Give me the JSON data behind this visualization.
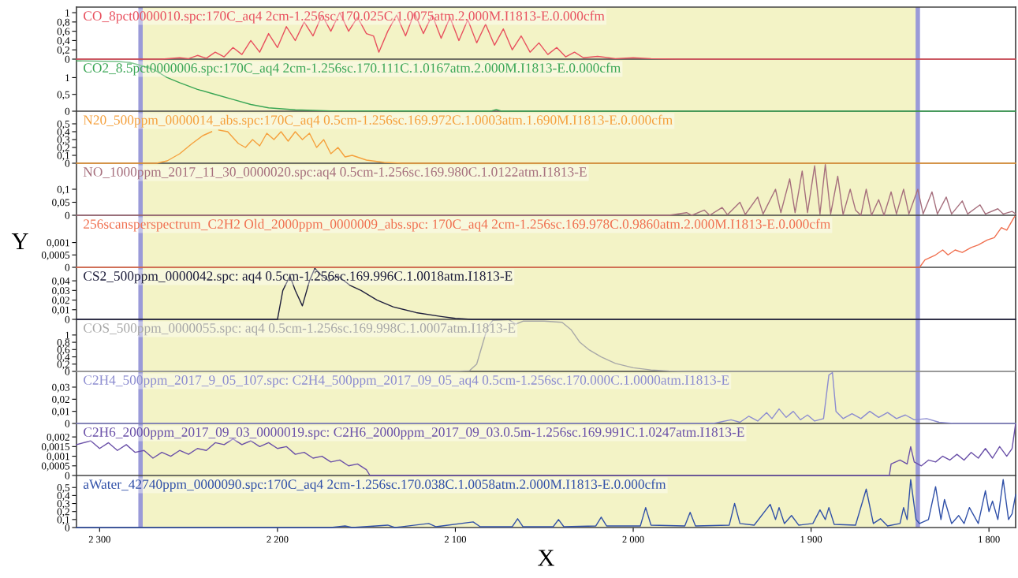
{
  "chart_data": [
    {
      "type": "line",
      "title": "CO_8pct0000010.spc:170C_aq4 2cm-1.256sc.170.025C.1.0075atm.2.000M.I1813-E.0.000cfm",
      "tick_labels": "y",
      "xlim": [
        2313,
        1785
      ],
      "ylim": [
        0,
        1.12
      ],
      "yticks": [
        0,
        {
          "value": 0.2,
          "label": "0,2"
        },
        {
          "value": 0.4,
          "label": "0,4"
        },
        {
          "value": 0.6,
          "label": "0,6"
        },
        {
          "value": 0.8,
          "label": "0,8"
        },
        1
      ],
      "x": [
        2313,
        2265,
        2255,
        2250,
        2245,
        2240,
        2235,
        2230,
        2225,
        2220,
        2215,
        2210,
        2205,
        2200,
        2195,
        2190,
        2185,
        2180,
        2175,
        2170,
        2165,
        2160,
        2155,
        2150,
        2146,
        2143,
        2138,
        2133,
        2128,
        2123,
        2118,
        2113,
        2108,
        2103,
        2098,
        2093,
        2088,
        2083,
        2078,
        2073,
        2068,
        2063,
        2058,
        2053,
        2048,
        2043,
        2038,
        2033,
        2028,
        2020,
        2010,
        2000,
        1990,
        1975,
        1785
      ],
      "series": [
        {
          "color": "#e8505e",
          "values": [
            0,
            0,
            0.03,
            0.01,
            0.08,
            0.02,
            0.15,
            0.05,
            0.25,
            0.1,
            0.4,
            0.15,
            0.55,
            0.25,
            0.7,
            0.4,
            0.8,
            0.5,
            0.95,
            0.6,
            1.0,
            0.6,
            0.9,
            0.55,
            0.5,
            0.15,
            0.6,
            0.95,
            0.5,
            1.0,
            0.55,
            0.95,
            0.45,
            0.9,
            0.4,
            0.85,
            0.35,
            0.75,
            0.3,
            0.65,
            0.2,
            0.5,
            0.15,
            0.35,
            0.1,
            0.25,
            0.05,
            0.15,
            0.03,
            0.06,
            0.01,
            0.03,
            0.01,
            0,
            0
          ]
        }
      ],
      "bands": [
        {
          "axis": "x",
          "from": 2277,
          "to": 1840,
          "color": "#f3f3c6"
        }
      ],
      "ref_lines": [
        {
          "axis": "x",
          "value": 2277,
          "color": "#9a9ad8"
        },
        {
          "axis": "x",
          "value": 1840,
          "color": "#9a9ad8"
        }
      ]
    },
    {
      "type": "line",
      "title": "CO2_8.5pct0000006.spc:170C_aq4 2cm-1.256sc.170.111C.1.0167atm.2.000M.I1813-E.0.000cfm",
      "tick_labels": "y",
      "xlim": [
        2313,
        1785
      ],
      "ylim": [
        0,
        1.55
      ],
      "yticks": [
        0,
        {
          "value": 0.5,
          "label": "0,5"
        },
        1
      ],
      "x": [
        2313,
        2290,
        2283,
        2278,
        2270,
        2262,
        2255,
        2245,
        2235,
        2225,
        2215,
        2205,
        2190,
        2170,
        2100,
        2080,
        2077,
        2074,
        1785
      ],
      "series": [
        {
          "color": "#3aa655",
          "values": [
            1.5,
            1.48,
            1.45,
            1.38,
            1.25,
            1.0,
            0.85,
            0.65,
            0.5,
            0.35,
            0.2,
            0.1,
            0.04,
            0.01,
            0,
            0,
            0.05,
            0,
            0
          ]
        }
      ],
      "bands": [
        {
          "axis": "x",
          "from": 2277,
          "to": 1840,
          "color": "#f3f3c6"
        }
      ],
      "ref_lines": [
        {
          "axis": "x",
          "value": 2277,
          "color": "#9a9ad8"
        },
        {
          "axis": "x",
          "value": 1840,
          "color": "#9a9ad8"
        }
      ]
    },
    {
      "type": "line",
      "title": "N20_500ppm_0000014_abs.spc:170C_aq4 0.5cm-1.256sc.169.972C.1.0003atm.1.690M.I1813-E.0.000cfm",
      "tick_labels": "y",
      "xlim": [
        2313,
        1785
      ],
      "ylim": [
        0,
        0.66
      ],
      "yticks": [
        0,
        {
          "value": 0.1,
          "label": "0,1"
        },
        {
          "value": 0.2,
          "label": "0,2"
        },
        {
          "value": 0.3,
          "label": "0,3"
        },
        {
          "value": 0.4,
          "label": "0,4"
        },
        {
          "value": 0.5,
          "label": "0,5"
        }
      ],
      "x": [
        2313,
        2268,
        2262,
        2255,
        2248,
        2242,
        2237,
        2235,
        2233,
        2228,
        2222,
        2218,
        2214,
        2210,
        2206,
        2202,
        2198,
        2194,
        2190,
        2186,
        2182,
        2178,
        2174,
        2170,
        2166,
        2162,
        2158,
        2150,
        2140,
        2130,
        1785
      ],
      "series": [
        {
          "color": "#f5a03c",
          "values": [
            0,
            0,
            0.03,
            0.12,
            0.25,
            0.35,
            0.4,
            null,
            0.42,
            0.4,
            0.25,
            0.2,
            0.3,
            0.22,
            0.38,
            0.3,
            0.4,
            0.28,
            0.4,
            0.3,
            0.38,
            0.2,
            0.3,
            0.12,
            0.2,
            0.08,
            0.1,
            0.04,
            0.01,
            0,
            0
          ]
        }
      ],
      "bands": [
        {
          "axis": "x",
          "from": 2277,
          "to": 1840,
          "color": "#f3f3c6"
        }
      ],
      "ref_lines": [
        {
          "axis": "x",
          "value": 2277,
          "color": "#9a9ad8"
        },
        {
          "axis": "x",
          "value": 1840,
          "color": "#9a9ad8"
        }
      ]
    },
    {
      "type": "line",
      "title": "NO_1000ppm_2017_11_30_0000020.spc:aq4 0.5cm-1.256sc.169.980C.1.0122atm.I1813-E",
      "tick_labels": "y",
      "xlim": [
        2313,
        1785
      ],
      "ylim": [
        0,
        0.2
      ],
      "yticks": [
        0,
        {
          "value": 0.05,
          "label": "0,05"
        },
        {
          "value": 0.1,
          "label": "0,1"
        }
      ],
      "x": [
        2313,
        1980,
        1970,
        1967,
        1960,
        1957,
        1950,
        1947,
        1940,
        1937,
        1930,
        1927,
        1920,
        1917,
        1912,
        1909,
        1905,
        1902,
        1898,
        1895,
        1892,
        1889,
        1885,
        1882,
        1878,
        1875,
        1872,
        1869,
        1866,
        1862,
        1859,
        1855,
        1852,
        1848,
        1845,
        1840,
        1837,
        1832,
        1829,
        1824,
        1821,
        1815,
        1812,
        1805,
        1802,
        1795,
        1792,
        1787,
        1785
      ],
      "series": [
        {
          "color": "#a66f7d",
          "values": [
            0,
            0,
            0.01,
            0,
            0.02,
            0,
            0.03,
            0.002,
            0.05,
            0.003,
            0.07,
            0.005,
            0.1,
            0.01,
            0.14,
            0.01,
            0.17,
            0.01,
            0.19,
            0.005,
            0.195,
            0.005,
            0.15,
            0.002,
            0.1,
            0.02,
            0,
            0.1,
            0,
            0.06,
            0,
            0.09,
            0.005,
            0.1,
            0.005,
            0.1,
            0.005,
            0.09,
            0.005,
            0.07,
            0.005,
            0.055,
            0.005,
            0.04,
            0.005,
            0.025,
            0.005,
            0.015,
            0.005
          ]
        }
      ],
      "bands": [
        {
          "axis": "x",
          "from": 2277,
          "to": 1840,
          "color": "#f3f3c6"
        }
      ],
      "ref_lines": [
        {
          "axis": "x",
          "value": 2277,
          "color": "#9a9ad8"
        },
        {
          "axis": "x",
          "value": 1840,
          "color": "#9a9ad8"
        }
      ]
    },
    {
      "type": "line",
      "title": "256scansperspectrum_C2H2 Old_2000ppm_0000009_abs.spc: 170C_aq4 2cm-1.256sc.169.978C.0.9860atm.2.000M.I1813-E.0.000cfm",
      "ylabel": "Y",
      "tick_labels": "y",
      "xlim": [
        2313,
        1785
      ],
      "ylim": [
        0,
        0.0021
      ],
      "yticks": [
        0,
        {
          "value": 0.0005,
          "label": "0,0005"
        },
        {
          "value": 0.001,
          "label": "0,001"
        }
      ],
      "x": [
        2313,
        1839,
        1836,
        1830,
        1826,
        1823,
        1819,
        1815,
        1810,
        1806,
        1801,
        1797,
        1793,
        1790,
        1786,
        1785
      ],
      "series": [
        {
          "color": "#f07050",
          "values": [
            0,
            0,
            0.0003,
            0.0005,
            0.0007,
            0.0005,
            0.0007,
            0.0006,
            0.0008,
            0.0009,
            0.0011,
            0.0012,
            0.0016,
            0.0015,
            0.002,
            0.0021
          ]
        }
      ],
      "bands": [
        {
          "axis": "x",
          "from": 2277,
          "to": 1840,
          "color": "#f3f3c6"
        }
      ],
      "ref_lines": [
        {
          "axis": "x",
          "value": 2277,
          "color": "#9a9ad8"
        },
        {
          "axis": "x",
          "value": 1840,
          "color": "#9a9ad8"
        }
      ]
    },
    {
      "type": "line",
      "title": "CS2_500ppm_0000042.spc: aq4 0.5cm-1.256sc.169.996C.1.0018atm.I1813-E",
      "tick_labels": "y",
      "xlim": [
        2313,
        1785
      ],
      "ylim": [
        0,
        0.054
      ],
      "yticks": [
        0,
        {
          "value": 0.01,
          "label": "0,01"
        },
        {
          "value": 0.02,
          "label": "0,02"
        },
        {
          "value": 0.03,
          "label": "0,03"
        },
        {
          "value": 0.04,
          "label": "0,04"
        }
      ],
      "x": [
        2313,
        2200,
        2197,
        2193,
        2190,
        2186,
        2182,
        2179,
        2175,
        2171,
        2166,
        2159,
        2153,
        2144,
        2135,
        2122,
        2108,
        2100,
        2091,
        1785
      ],
      "series": [
        {
          "color": "#1e1e3c",
          "values": [
            0,
            0,
            0.03,
            0.045,
            0.03,
            0.014,
            0.04,
            0.053,
            0.045,
            0.04,
            0.045,
            0.035,
            0.03,
            0.02,
            0.013,
            0.007,
            0.003,
            0.001,
            0,
            0
          ]
        }
      ],
      "bands": [
        {
          "axis": "x",
          "from": 2277,
          "to": 1840,
          "color": "#f3f3c6"
        }
      ],
      "ref_lines": [
        {
          "axis": "x",
          "value": 2277,
          "color": "#9a9ad8"
        },
        {
          "axis": "x",
          "value": 1840,
          "color": "#9a9ad8"
        }
      ]
    },
    {
      "type": "line",
      "title": "COS_500ppm_0000055.spc: aq4 0.5cm-1.256sc.169.998C.1.0007atm.I1813-E",
      "tick_labels": "y",
      "xlim": [
        2313,
        1785
      ],
      "ylim": [
        0,
        1.43
      ],
      "yticks": [
        0,
        {
          "value": 0.2,
          "label": "0,2"
        },
        {
          "value": 0.4,
          "label": "0,4"
        },
        {
          "value": 0.6,
          "label": "0,6"
        },
        {
          "value": 0.8,
          "label": "0,8"
        },
        1
      ],
      "x": [
        2313,
        2100,
        2092,
        2088,
        2085,
        2082,
        2079,
        2070,
        2066,
        2062,
        2050,
        2040,
        2035,
        2030,
        2025,
        2018,
        2010,
        2000,
        1990,
        1980,
        1970,
        1785
      ],
      "series": [
        {
          "color": "#a8a8a8",
          "values": [
            0,
            0,
            0.02,
            0.2,
            0.7,
            1.2,
            1.4,
            1.42,
            1.3,
            1.38,
            1.38,
            1.35,
            1.15,
            0.8,
            0.6,
            0.4,
            0.22,
            0.1,
            0.04,
            0.01,
            0,
            0
          ]
        }
      ],
      "bands": [
        {
          "axis": "x",
          "from": 2277,
          "to": 1840,
          "color": "#f3f3c6"
        }
      ],
      "ref_lines": [
        {
          "axis": "x",
          "value": 2277,
          "color": "#9a9ad8"
        },
        {
          "axis": "x",
          "value": 1840,
          "color": "#9a9ad8"
        }
      ]
    },
    {
      "type": "line",
      "title": "C2H4_500ppm_2017_9_05_107.spc: C2H4_500ppm_2017_09_05_aq4 0.5cm-1.256sc.170.000C.1.0000atm.I1813-E",
      "tick_labels": "y",
      "xlim": [
        2313,
        1785
      ],
      "ylim": [
        0,
        0.043
      ],
      "yticks": [
        0,
        {
          "value": 0.01,
          "label": "0,01"
        },
        {
          "value": 0.02,
          "label": "0,02"
        },
        {
          "value": 0.03,
          "label": "0,03"
        }
      ],
      "x": [
        2313,
        1955,
        1945,
        1940,
        1935,
        1930,
        1925,
        1922,
        1918,
        1914,
        1910,
        1906,
        1902,
        1898,
        1893,
        1890,
        1888,
        1886,
        1882,
        1877,
        1872,
        1867,
        1862,
        1857,
        1852,
        1847,
        1842,
        1835,
        1828,
        1820,
        1785
      ],
      "series": [
        {
          "color": "#8c8cd0",
          "values": [
            0,
            0,
            0.003,
            0.001,
            0.006,
            0.002,
            0.009,
            0.004,
            0.012,
            0.005,
            0.01,
            0.003,
            0.007,
            0.002,
            0.004,
            0.04,
            0.042,
            0.01,
            0.004,
            0.008,
            0.004,
            0.01,
            0.005,
            0.009,
            0.004,
            0.007,
            0.003,
            0.004,
            0.001,
            0,
            0
          ]
        }
      ],
      "bands": [
        {
          "axis": "x",
          "from": 2277,
          "to": 1840,
          "color": "#f3f3c6"
        }
      ],
      "ref_lines": [
        {
          "axis": "x",
          "value": 2277,
          "color": "#9a9ad8"
        },
        {
          "axis": "x",
          "value": 1840,
          "color": "#9a9ad8"
        }
      ]
    },
    {
      "type": "line",
      "title": "C2H6_2000ppm_2017_09_03_0000019.spc: C2H6_2000ppm_2017_09_03.0.5m-1.256sc.169.991C.1.0247atm.I1813-E",
      "tick_labels": "y",
      "xlim": [
        2313,
        1785
      ],
      "ylim": [
        0,
        0.0027
      ],
      "yticks": [
        0,
        {
          "value": 0.0005,
          "label": "0,0005"
        },
        {
          "value": 0.001,
          "label": "0,001"
        },
        {
          "value": 0.0015,
          "label": "0,0015"
        },
        {
          "value": 0.002,
          "label": "0,002"
        }
      ],
      "x": [
        2313,
        2305,
        2300,
        2295,
        2290,
        2285,
        2280,
        2275,
        2270,
        2265,
        2260,
        2255,
        2250,
        2245,
        2240,
        2235,
        2230,
        2225,
        2220,
        2215,
        2210,
        2205,
        2200,
        2195,
        2190,
        2185,
        2180,
        2175,
        2170,
        2165,
        2160,
        2155,
        2150,
        2148,
        1856,
        1855,
        1850,
        1846,
        1844,
        1842,
        1838,
        1834,
        1830,
        1826,
        1822,
        1818,
        1814,
        1810,
        1806,
        1802,
        1798,
        1794,
        1790,
        1787,
        1785
      ],
      "series": [
        {
          "color": "#6a50a8",
          "values": [
            0.0016,
            0.0018,
            0.0014,
            0.0017,
            0.0013,
            0.0016,
            0.0012,
            0.0013,
            0.0009,
            0.0012,
            0.001,
            0.0013,
            0.0011,
            0.0014,
            0.0013,
            0.0017,
            0.0016,
            0.0019,
            0.0016,
            0.0018,
            0.0015,
            0.0017,
            0.0014,
            0.0015,
            0.0011,
            0.0012,
            0.0009,
            0.001,
            0.0007,
            0.0008,
            0.0005,
            0.0006,
            0.0003,
            0,
            0,
            0.0006,
            0.0008,
            0.0006,
            0.0015,
            0.0007,
            0.0005,
            0.0008,
            0.0007,
            0.001,
            0.0008,
            0.0011,
            0.0008,
            0.0012,
            0.0009,
            0.0014,
            0.0009,
            0.0015,
            0.001,
            0.0014,
            0.0027
          ]
        }
      ],
      "bands": [
        {
          "axis": "x",
          "from": 2277,
          "to": 1840,
          "color": "#f3f3c6"
        }
      ],
      "ref_lines": [
        {
          "axis": "x",
          "value": 2277,
          "color": "#9a9ad8"
        },
        {
          "axis": "x",
          "value": 1840,
          "color": "#9a9ad8"
        }
      ]
    },
    {
      "type": "line",
      "title": "aWater_42740ppm_0000090.spc:170C_aq4 2cm-1.256sc.170.038C.1.0058atm.2.000M.I1813-E.0.000cfm",
      "xlabel": "X",
      "xlim": [
        2313,
        1785
      ],
      "xticks": [
        {
          "value": 2300,
          "label": "2 300"
        },
        {
          "value": 2200,
          "label": "2 200"
        },
        {
          "value": 2100,
          "label": "2 100"
        },
        {
          "value": 2000,
          "label": "2 000"
        },
        {
          "value": 1900,
          "label": "1 900"
        },
        {
          "value": 1800,
          "label": "1 800"
        }
      ],
      "ylim": [
        0,
        0.65
      ],
      "yticks": [
        0,
        {
          "value": 0.1,
          "label": "0,1"
        },
        {
          "value": 0.2,
          "label": "0,2"
        },
        {
          "value": 0.3,
          "label": "0,3"
        },
        {
          "value": 0.4,
          "label": "0,4"
        },
        {
          "value": 0.5,
          "label": "0,5"
        }
      ],
      "x": [
        2313,
        2170,
        2162,
        2158,
        2138,
        2134,
        2115,
        2111,
        2090,
        2086,
        2068,
        2065,
        2062,
        2045,
        2042,
        2039,
        2021,
        2018,
        2015,
        1996,
        1993,
        1990,
        1971,
        1968,
        1965,
        1946,
        1943,
        1940,
        1932,
        1923,
        1920,
        1918,
        1915,
        1911,
        1907,
        1899,
        1895,
        1892,
        1890,
        1887,
        1875,
        1869,
        1865,
        1861,
        1857,
        1850,
        1848,
        1846,
        1844,
        1841,
        1839,
        1834,
        1830,
        1827,
        1825,
        1821,
        1817,
        1814,
        1811,
        1806,
        1802,
        1800,
        1798,
        1795,
        1792,
        1789,
        1787,
        1785
      ],
      "series": [
        {
          "color": "#3050a8",
          "values": [
            0,
            0,
            0.02,
            0,
            0.03,
            0,
            0.05,
            0.01,
            0.07,
            0.01,
            0.01,
            0.11,
            0.01,
            0.01,
            0.1,
            0.01,
            0.02,
            0.13,
            0.02,
            0.02,
            0.25,
            0.03,
            0.02,
            0.19,
            0.02,
            0.03,
            0.3,
            0.05,
            0.03,
            0.29,
            0.1,
            0.25,
            0.05,
            0.15,
            0.03,
            0.05,
            0.22,
            0.1,
            0.25,
            0.04,
            0.03,
            0.48,
            0.05,
            0.11,
            0.02,
            0.05,
            0.25,
            0.1,
            0.6,
            0.1,
            0.05,
            0.1,
            0.51,
            0.1,
            0.35,
            0.05,
            0.15,
            0.05,
            0.25,
            0.05,
            0.46,
            0.2,
            0.33,
            0.1,
            0.6,
            0.1,
            0.17,
            0.41
          ]
        }
      ],
      "bands": [
        {
          "axis": "x",
          "from": 2277,
          "to": 1840,
          "color": "#f3f3c6"
        }
      ],
      "ref_lines": [
        {
          "axis": "x",
          "value": 2277,
          "color": "#9a9ad8"
        },
        {
          "axis": "x",
          "value": 1840,
          "color": "#9a9ad8"
        }
      ]
    }
  ]
}
